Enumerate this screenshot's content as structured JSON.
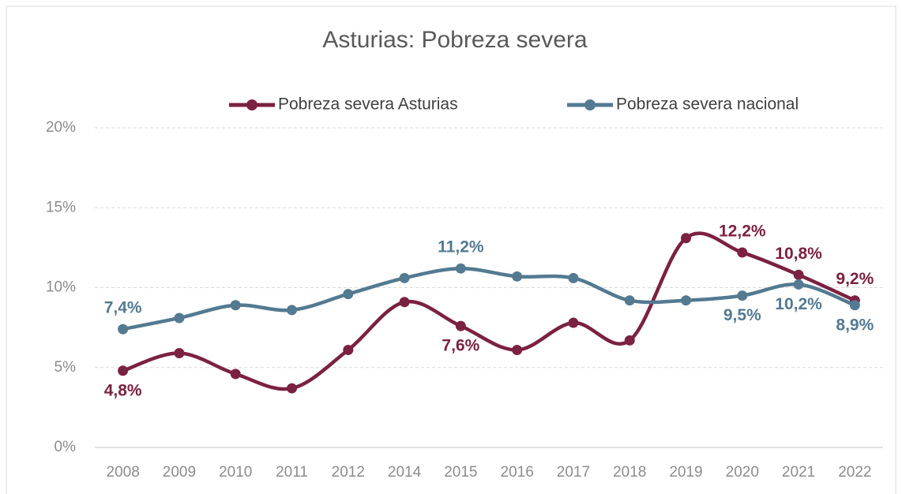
{
  "chart_data": {
    "type": "line",
    "title": "Asturias: Pobreza severa",
    "categories": [
      "2008",
      "2009",
      "2010",
      "2011",
      "2012",
      "2014",
      "2015",
      "2016",
      "2017",
      "2018",
      "2019",
      "2020",
      "2021",
      "2022"
    ],
    "series": [
      {
        "name": "Pobreza severa Asturias",
        "color": "#7b2141",
        "values": [
          4.8,
          5.9,
          4.6,
          3.7,
          6.1,
          9.1,
          7.6,
          6.1,
          7.8,
          6.7,
          13.1,
          12.2,
          10.8,
          9.2
        ],
        "value_labels": [
          "4,8%",
          null,
          null,
          null,
          null,
          null,
          "7,6%",
          null,
          null,
          null,
          null,
          "12,2%",
          "10,8%",
          "9,2%"
        ]
      },
      {
        "name": "Pobreza severa nacional",
        "color": "#537a91",
        "values": [
          7.4,
          8.1,
          8.9,
          8.6,
          9.6,
          10.6,
          11.2,
          10.7,
          10.6,
          9.2,
          9.2,
          9.5,
          10.2,
          8.9
        ],
        "value_labels": [
          "7,4%",
          null,
          null,
          null,
          null,
          null,
          "11,2%",
          null,
          null,
          null,
          null,
          "9,5%",
          "10,2%",
          "8,9%"
        ]
      }
    ],
    "ylim": [
      0,
      20
    ],
    "yticks": [
      {
        "value": 0,
        "label": "0%"
      },
      {
        "value": 5,
        "label": "5%"
      },
      {
        "value": 10,
        "label": "10%"
      },
      {
        "value": 15,
        "label": "15%"
      },
      {
        "value": 20,
        "label": "20%"
      }
    ],
    "grid": true,
    "legend": "top"
  }
}
